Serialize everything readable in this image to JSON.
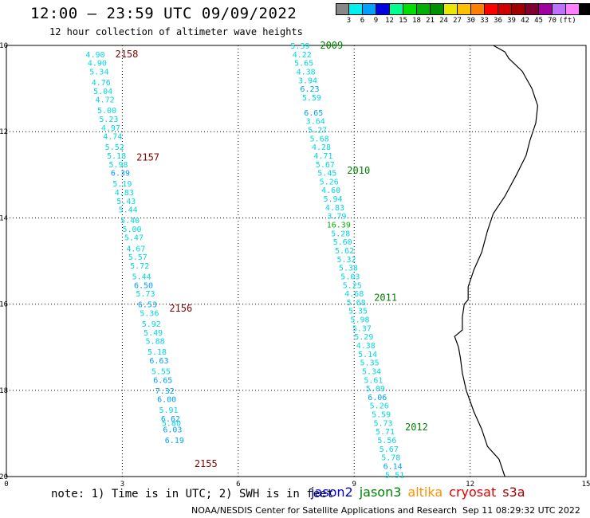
{
  "header": {
    "title": "12:00 — 23:59 UTC 09/09/2022",
    "subtitle": "12 hour collection of altimeter wave heights"
  },
  "legend": {
    "colors": [
      "#888888",
      "#00f0f0",
      "#00a0ff",
      "#0000e0",
      "#00ff90",
      "#00e000",
      "#00b000",
      "#009000",
      "#e8e800",
      "#ffc000",
      "#ff8000",
      "#ff0000",
      "#d00000",
      "#a00000",
      "#800030",
      "#a000a0",
      "#c070ff",
      "#ff80ff",
      "#000000"
    ],
    "labels": [
      "3",
      "6",
      "9",
      "12",
      "15",
      "18",
      "21",
      "24",
      "27",
      "30",
      "33",
      "36",
      "39",
      "42",
      "45",
      "70",
      "(ft)"
    ]
  },
  "axes": {
    "x_ticks": [
      "0",
      "3",
      "6",
      "9",
      "12",
      "15"
    ],
    "y_ticks": [
      "-10",
      "-12",
      "-14",
      "-16",
      "-18",
      "-20"
    ]
  },
  "tracks": [
    {
      "name": "left",
      "times": [
        {
          "label": "2158",
          "color": "#800000",
          "lat": -10.2
        },
        {
          "label": "2157",
          "color": "#800000",
          "lat": -12.6
        },
        {
          "label": "2156",
          "color": "#800000",
          "lat": -16.1
        },
        {
          "label": "2155",
          "color": "#800000",
          "lat": -19.7
        }
      ],
      "points": [
        {
          "lon": 2.3,
          "lat": -10.2,
          "v": "4.90"
        },
        {
          "lon": 2.35,
          "lat": -10.4,
          "v": "4.90"
        },
        {
          "lon": 2.4,
          "lat": -10.6,
          "v": "5.34"
        },
        {
          "lon": 2.45,
          "lat": -10.85,
          "v": "4.76"
        },
        {
          "lon": 2.5,
          "lat": -11.05,
          "v": "5.04"
        },
        {
          "lon": 2.55,
          "lat": -11.25,
          "v": "4.72"
        },
        {
          "lon": 2.6,
          "lat": -11.5,
          "v": "5.00"
        },
        {
          "lon": 2.65,
          "lat": -11.7,
          "v": "5.23"
        },
        {
          "lon": 2.7,
          "lat": -11.9,
          "v": "4.97"
        },
        {
          "lon": 2.75,
          "lat": -12.1,
          "v": "4.74"
        },
        {
          "lon": 2.8,
          "lat": -12.35,
          "v": "5.52"
        },
        {
          "lon": 2.85,
          "lat": -12.55,
          "v": "5.18"
        },
        {
          "lon": 2.9,
          "lat": -12.75,
          "v": "5.98"
        },
        {
          "lon": 2.95,
          "lat": -12.95,
          "v": "6.39"
        },
        {
          "lon": 3.0,
          "lat": -13.2,
          "v": "5.19"
        },
        {
          "lon": 3.05,
          "lat": -13.4,
          "v": "4.83"
        },
        {
          "lon": 3.1,
          "lat": -13.6,
          "v": "5.43"
        },
        {
          "lon": 3.15,
          "lat": -13.8,
          "v": "5.44"
        },
        {
          "lon": 3.2,
          "lat": -14.05,
          "v": "5.40"
        },
        {
          "lon": 3.25,
          "lat": -14.25,
          "v": "5.00"
        },
        {
          "lon": 3.3,
          "lat": -14.45,
          "v": "5.47"
        },
        {
          "lon": 3.35,
          "lat": -14.7,
          "v": "4.67"
        },
        {
          "lon": 3.4,
          "lat": -14.9,
          "v": "5.57"
        },
        {
          "lon": 3.45,
          "lat": -15.1,
          "v": "5.72"
        },
        {
          "lon": 3.5,
          "lat": -15.35,
          "v": "5.44"
        },
        {
          "lon": 3.55,
          "lat": -15.55,
          "v": "6.50"
        },
        {
          "lon": 3.6,
          "lat": -15.75,
          "v": "5.73"
        },
        {
          "lon": 3.65,
          "lat": -16.0,
          "v": "6.53"
        },
        {
          "lon": 3.7,
          "lat": -16.2,
          "v": "5.36"
        },
        {
          "lon": 3.75,
          "lat": -16.45,
          "v": "5.92"
        },
        {
          "lon": 3.8,
          "lat": -16.65,
          "v": "5.49"
        },
        {
          "lon": 3.85,
          "lat": -16.85,
          "v": "5.88"
        },
        {
          "lon": 3.9,
          "lat": -17.1,
          "v": "5.18"
        },
        {
          "lon": 3.95,
          "lat": -17.3,
          "v": "6.63"
        },
        {
          "lon": 4.0,
          "lat": -17.55,
          "v": "5.55"
        },
        {
          "lon": 4.05,
          "lat": -17.75,
          "v": "6.65"
        },
        {
          "lon": 4.1,
          "lat": -18.0,
          "v": "7.32"
        },
        {
          "lon": 4.15,
          "lat": -18.2,
          "v": "6.00"
        },
        {
          "lon": 4.2,
          "lat": -18.45,
          "v": "5.91"
        },
        {
          "lon": 4.25,
          "lat": -18.65,
          "v": "6.62"
        },
        {
          "lon": 4.27,
          "lat": -18.75,
          "v": "5.80"
        },
        {
          "lon": 4.3,
          "lat": -18.9,
          "v": "6.03"
        },
        {
          "lon": 4.35,
          "lat": -19.15,
          "v": "6.19"
        }
      ]
    },
    {
      "name": "right",
      "times": [
        {
          "label": "2009",
          "color": "#008000",
          "lat": -10.0
        },
        {
          "label": "2010",
          "color": "#008000",
          "lat": -12.9
        },
        {
          "label": "2011",
          "color": "#008000",
          "lat": -15.85
        },
        {
          "label": "2012",
          "color": "#008000",
          "lat": -18.85
        }
      ],
      "points": [
        {
          "lon": 7.6,
          "lat": -10.0,
          "v": "5.39"
        },
        {
          "lon": 7.65,
          "lat": -10.2,
          "v": "4.22"
        },
        {
          "lon": 7.7,
          "lat": -10.4,
          "v": "5.65"
        },
        {
          "lon": 7.75,
          "lat": -10.6,
          "v": "4.38"
        },
        {
          "lon": 7.8,
          "lat": -10.8,
          "v": "3.94"
        },
        {
          "lon": 7.85,
          "lat": -11.0,
          "v": "6.23"
        },
        {
          "lon": 7.9,
          "lat": -11.2,
          "v": "5.59"
        },
        {
          "lon": 7.95,
          "lat": -11.55,
          "v": "6.65"
        },
        {
          "lon": 8.0,
          "lat": -11.75,
          "v": "3.64"
        },
        {
          "lon": 8.05,
          "lat": -11.95,
          "v": "5.27"
        },
        {
          "lon": 8.1,
          "lat": -12.15,
          "v": "5.68"
        },
        {
          "lon": 8.15,
          "lat": -12.35,
          "v": "4.28"
        },
        {
          "lon": 8.2,
          "lat": -12.55,
          "v": "4.71"
        },
        {
          "lon": 8.25,
          "lat": -12.75,
          "v": "5.67"
        },
        {
          "lon": 8.3,
          "lat": -12.95,
          "v": "5.45"
        },
        {
          "lon": 8.35,
          "lat": -13.15,
          "v": "5.26"
        },
        {
          "lon": 8.4,
          "lat": -13.35,
          "v": "4.60"
        },
        {
          "lon": 8.45,
          "lat": -13.55,
          "v": "5.94"
        },
        {
          "lon": 8.5,
          "lat": -13.75,
          "v": "4.83"
        },
        {
          "lon": 8.55,
          "lat": -13.95,
          "v": "3.79"
        },
        {
          "lon": 8.6,
          "lat": -14.15,
          "v": "16.39"
        },
        {
          "lon": 8.65,
          "lat": -14.35,
          "v": "5.28"
        },
        {
          "lon": 8.7,
          "lat": -14.55,
          "v": "5.60"
        },
        {
          "lon": 8.75,
          "lat": -14.75,
          "v": "5.62"
        },
        {
          "lon": 8.8,
          "lat": -14.95,
          "v": "5.32"
        },
        {
          "lon": 8.85,
          "lat": -15.15,
          "v": "5.38"
        },
        {
          "lon": 8.9,
          "lat": -15.35,
          "v": "5.03"
        },
        {
          "lon": 8.95,
          "lat": -15.55,
          "v": "5.25"
        },
        {
          "lon": 9.0,
          "lat": -15.75,
          "v": "4.68"
        },
        {
          "lon": 9.05,
          "lat": -15.95,
          "v": "5.68"
        },
        {
          "lon": 9.1,
          "lat": -16.15,
          "v": "5.35"
        },
        {
          "lon": 9.15,
          "lat": -16.35,
          "v": "5.98"
        },
        {
          "lon": 9.2,
          "lat": -16.55,
          "v": "5.37"
        },
        {
          "lon": 9.25,
          "lat": -16.75,
          "v": "5.29"
        },
        {
          "lon": 9.3,
          "lat": -16.95,
          "v": "4.38"
        },
        {
          "lon": 9.35,
          "lat": -17.15,
          "v": "5.14"
        },
        {
          "lon": 9.4,
          "lat": -17.35,
          "v": "5.35"
        },
        {
          "lon": 9.45,
          "lat": -17.55,
          "v": "5.34"
        },
        {
          "lon": 9.5,
          "lat": -17.75,
          "v": "5.61"
        },
        {
          "lon": 9.55,
          "lat": -17.95,
          "v": "5.09"
        },
        {
          "lon": 9.6,
          "lat": -18.15,
          "v": "6.06"
        },
        {
          "lon": 9.65,
          "lat": -18.35,
          "v": "5.26"
        },
        {
          "lon": 9.7,
          "lat": -18.55,
          "v": "5.59"
        },
        {
          "lon": 9.75,
          "lat": -18.75,
          "v": "5.73"
        },
        {
          "lon": 9.8,
          "lat": -18.95,
          "v": "5.71"
        },
        {
          "lon": 9.85,
          "lat": -19.15,
          "v": "5.56"
        },
        {
          "lon": 9.9,
          "lat": -19.35,
          "v": "5.67"
        },
        {
          "lon": 9.95,
          "lat": -19.55,
          "v": "5.78"
        },
        {
          "lon": 10.0,
          "lat": -19.75,
          "v": "6.14"
        },
        {
          "lon": 10.05,
          "lat": -19.95,
          "v": "5.51"
        }
      ]
    }
  ],
  "footer": {
    "note": "note: 1) Time is in UTC; 2) SWH is in feet",
    "satellites": [
      {
        "name": "jason2",
        "color": "#0000d0"
      },
      {
        "name": "jason3",
        "color": "#008000"
      },
      {
        "name": "altika",
        "color": "#ff9000"
      },
      {
        "name": "cryosat",
        "color": "#e00000"
      },
      {
        "name": "s3a",
        "color": "#a00000"
      }
    ],
    "credit": "NOAA/NESDIS Center for Satellite Applications and Research",
    "timestamp": "Sep 11 08:29:32 UTC 2022"
  }
}
